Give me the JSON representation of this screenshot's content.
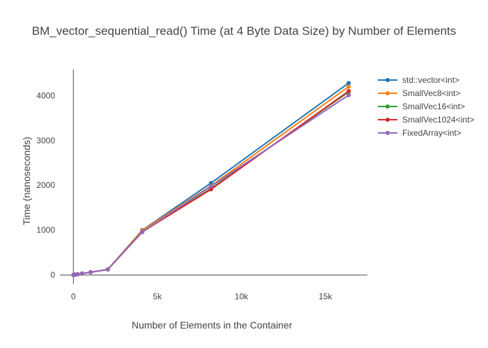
{
  "chart_data": {
    "type": "line",
    "title": "BM_vector_sequential_read() Time (at 4 Byte Data Size) by Number of Elements",
    "xlabel": "Number of Elements in the Container",
    "ylabel": "Time (nanoseconds)",
    "xlim": [
      -800,
      17500
    ],
    "ylim": [
      -200,
      4580
    ],
    "x_ticks": [
      0,
      5000,
      10000,
      15000
    ],
    "x_tick_labels": [
      "0",
      "5k",
      "10k",
      "15k"
    ],
    "y_ticks": [
      0,
      1000,
      2000,
      3000,
      4000
    ],
    "y_tick_labels": [
      "0",
      "1000",
      "2000",
      "3000",
      "4000"
    ],
    "grid": false,
    "legend_position": "top-right",
    "x": [
      1,
      2,
      4,
      8,
      16,
      32,
      64,
      128,
      256,
      512,
      1024,
      2048,
      4096,
      8192,
      16384
    ],
    "series": [
      {
        "name": "std::vector<int>",
        "color": "#1f77b4",
        "values": [
          1,
          1,
          1,
          2,
          2,
          3,
          5,
          9,
          17,
          32,
          62,
          123,
          1000,
          2050,
          4280
        ]
      },
      {
        "name": "SmallVec8<int>",
        "color": "#ff7f0e",
        "values": [
          1,
          1,
          1,
          2,
          2,
          3,
          5,
          9,
          17,
          32,
          63,
          125,
          990,
          1990,
          4200
        ]
      },
      {
        "name": "SmallVec16<int>",
        "color": "#2ca02c",
        "values": [
          1,
          1,
          1,
          2,
          2,
          3,
          5,
          9,
          17,
          32,
          62,
          123,
          960,
          1930,
          4080
        ]
      },
      {
        "name": "SmallVec1024<int>",
        "color": "#d62728",
        "values": [
          1,
          1,
          1,
          2,
          2,
          3,
          5,
          9,
          17,
          32,
          62,
          123,
          960,
          1910,
          4100
        ]
      },
      {
        "name": "FixedArray<int>",
        "color": "#9467bd",
        "values": [
          1,
          1,
          1,
          2,
          2,
          3,
          5,
          9,
          17,
          32,
          62,
          123,
          955,
          1980,
          4010
        ]
      }
    ]
  }
}
